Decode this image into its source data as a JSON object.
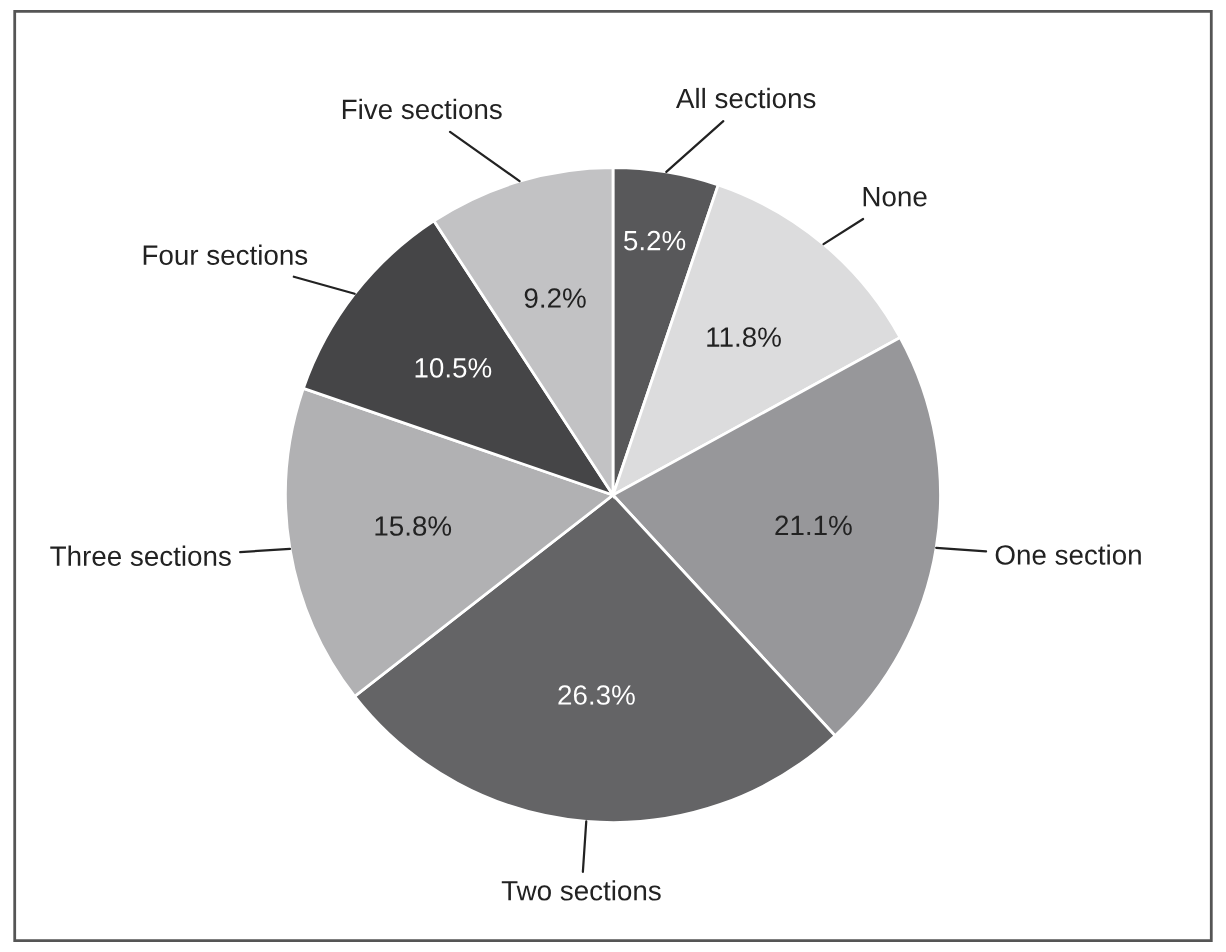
{
  "chart_data": {
    "type": "pie",
    "categories": [
      "All sections",
      "None",
      "One section",
      "Two sections",
      "Three sections",
      "Four sections",
      "Five sections"
    ],
    "values": [
      5.2,
      11.8,
      21.1,
      26.3,
      15.8,
      10.5,
      9.2
    ],
    "value_labels": [
      "5.2%",
      "11.8%",
      "21.1%",
      "26.3%",
      "15.8%",
      "10.5%",
      "9.2%"
    ],
    "colors": [
      "#58585a",
      "#dcdcdd",
      "#97979a",
      "#646466",
      "#b1b1b3",
      "#454547",
      "#c2c2c4"
    ]
  }
}
